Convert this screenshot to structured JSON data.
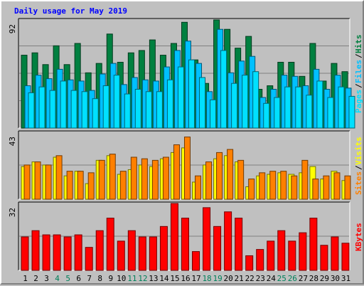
{
  "chart_data": {
    "type": "bar",
    "title": "Daily usage for May 2019",
    "categories": [
      "1",
      "2",
      "3",
      "4",
      "5",
      "6",
      "7",
      "8",
      "9",
      "10",
      "11",
      "12",
      "13",
      "14",
      "15",
      "16",
      "17",
      "18",
      "19",
      "20",
      "21",
      "22",
      "23",
      "24",
      "25",
      "26",
      "27",
      "28",
      "29",
      "30",
      "31"
    ],
    "weekend_days": [
      "4",
      "5",
      "11",
      "12",
      "18",
      "19",
      "25",
      "26"
    ],
    "panels": [
      {
        "max_label": "92",
        "ylim": [
          0,
          92
        ],
        "series": [
          {
            "name": "Hits",
            "color": "#008040",
            "values": [
              62,
              64,
              54,
              70,
              54,
              72,
              47,
              55,
              80,
              56,
              64,
              66,
              75,
              62,
              72,
              90,
              58,
              38,
              92,
              84,
              68,
              78,
              33,
              36,
              56,
              56,
              44,
              72,
              40,
              55,
              48
            ]
          },
          {
            "name": "Files",
            "color": "#00c0ff",
            "values": [
              36,
              45,
              42,
              50,
              41,
              40,
              32,
              46,
              55,
              37,
              43,
              41,
              40,
              52,
              66,
              74,
              55,
              31,
              84,
              47,
              57,
              61,
              26,
              33,
              45,
              44,
              36,
              50,
              33,
              45,
              34
            ]
          },
          {
            "name": "Pages",
            "color": "#00e0ff",
            "values": [
              30,
              35,
              32,
              40,
              32,
              31,
              25,
              36,
              45,
              29,
              33,
              31,
              31,
              41,
              52,
              58,
              43,
              24,
              66,
              38,
              45,
              48,
              21,
              26,
              35,
              35,
              28,
              40,
              26,
              35,
              27
            ]
          }
        ]
      },
      {
        "max_label": "43",
        "ylim": [
          0,
          43
        ],
        "series": [
          {
            "name": "Visits",
            "color": "#ffff00",
            "values": [
              21,
              24,
              22,
              27,
              15,
              18,
              10,
              25,
              28,
              16,
              19,
              22,
              21,
              26,
              30,
              33,
              11,
              22,
              26,
              28,
              24,
              8,
              15,
              16,
              17,
              16,
              17,
              21,
              13,
              18,
              12
            ]
          },
          {
            "name": "Sites",
            "color": "#ff8000",
            "values": [
              22,
              24,
              22,
              28,
              18,
              18,
              17,
              25,
              29,
              18,
              27,
              26,
              25,
              27,
              35,
              40,
              15,
              24,
              30,
              32,
              25,
              13,
              17,
              18,
              18,
              15,
              25,
              13,
              15,
              17,
              15
            ]
          }
        ],
        "legend_order": [
          "Sites",
          "Visits"
        ]
      },
      {
        "max_label": "32",
        "ylim": [
          0,
          32
        ],
        "series": [
          {
            "name": "KBytes",
            "color": "#ff0000",
            "values": [
              16,
              19,
              17,
              17,
              16,
              17,
              11,
              19,
              25,
              14,
              19,
              16,
              16,
              21,
              32,
              25,
              9,
              30,
              21,
              28,
              25,
              7,
              10,
              14,
              19,
              14,
              18,
              25,
              12,
              16,
              13
            ]
          }
        ]
      }
    ],
    "legend_sep": "/"
  }
}
